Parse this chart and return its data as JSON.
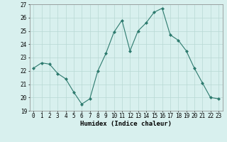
{
  "x": [
    0,
    1,
    2,
    3,
    4,
    5,
    6,
    7,
    8,
    9,
    10,
    11,
    12,
    13,
    14,
    15,
    16,
    17,
    18,
    19,
    20,
    21,
    22,
    23
  ],
  "y": [
    22.2,
    22.6,
    22.5,
    21.8,
    21.4,
    20.4,
    19.5,
    19.9,
    22.0,
    23.3,
    24.9,
    25.8,
    23.5,
    25.0,
    25.6,
    26.4,
    26.7,
    24.7,
    24.3,
    23.5,
    22.2,
    21.1,
    20.0,
    19.9
  ],
  "line_color": "#2d7a6e",
  "marker": "D",
  "marker_size": 2.0,
  "bg_color": "#d8f0ee",
  "grid_color": "#b8d8d4",
  "xlabel": "Humidex (Indice chaleur)",
  "ylim": [
    19,
    27
  ],
  "xlim": [
    -0.5,
    23.5
  ],
  "yticks": [
    19,
    20,
    21,
    22,
    23,
    24,
    25,
    26,
    27
  ],
  "xticks": [
    0,
    1,
    2,
    3,
    4,
    5,
    6,
    7,
    8,
    9,
    10,
    11,
    12,
    13,
    14,
    15,
    16,
    17,
    18,
    19,
    20,
    21,
    22,
    23
  ],
  "label_fontsize": 6.5,
  "tick_fontsize": 5.5
}
